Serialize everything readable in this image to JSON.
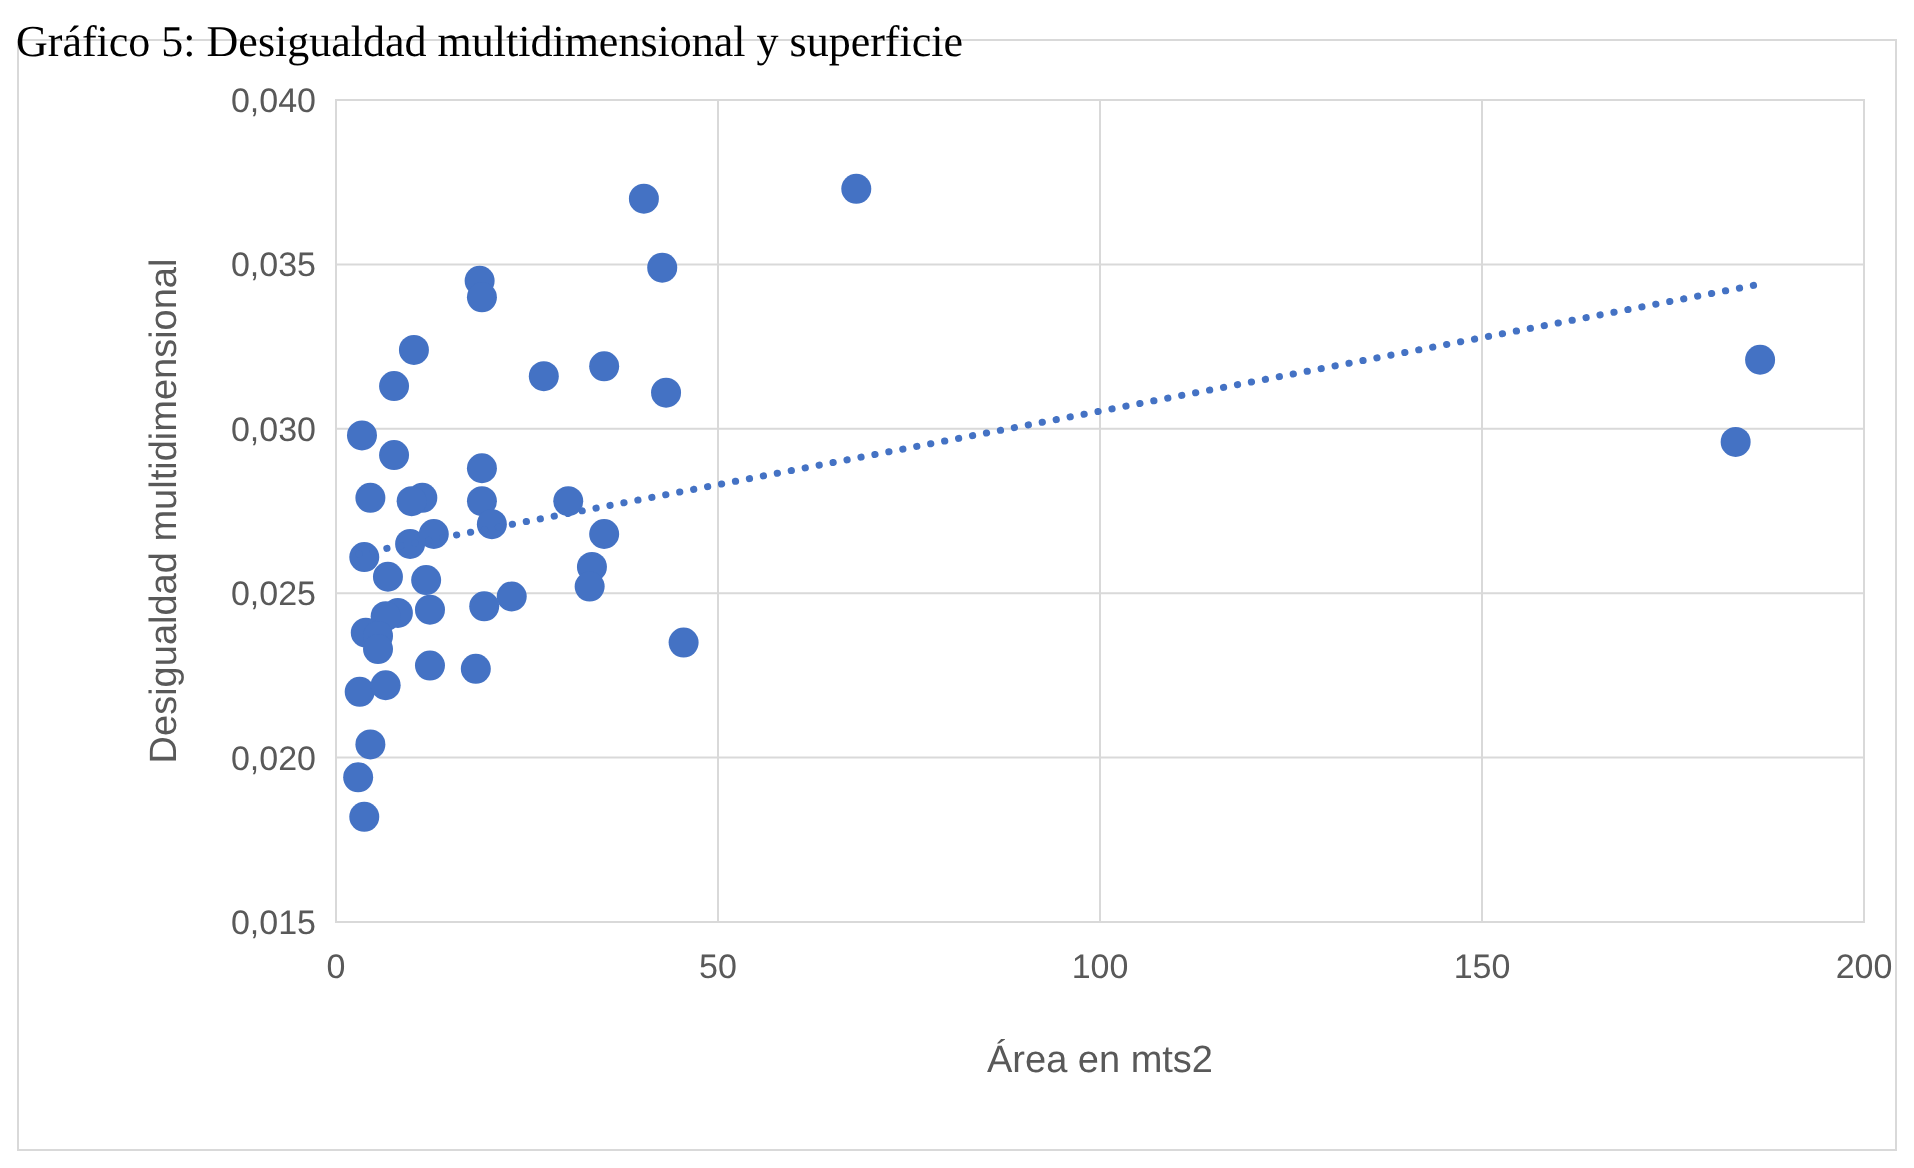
{
  "chart_data": {
    "type": "scatter",
    "title": "Gráfico 5: Desigualdad multidimensional y superficie",
    "xlabel": "Área en mts2",
    "ylabel": "Desigualdad multidimensional",
    "series": [
      {
        "color": "#4472c4",
        "marker": "circle",
        "x": [
          68.1,
          40.3,
          18.8,
          19.1,
          42.7,
          10.2,
          7.6,
          27.2,
          35.1,
          43.2,
          3.4,
          7.6,
          4.5,
          19.1,
          11.3,
          9.9,
          19.1,
          30.4,
          20.4,
          3.7,
          9.7,
          12.8,
          35.1,
          6.8,
          11.8,
          33.5,
          33.2,
          23.0,
          19.4,
          12.3,
          8.1,
          6.5,
          3.9,
          5.5,
          5.5,
          45.5,
          12.3,
          18.3,
          3.1,
          6.5,
          4.5,
          2.9,
          3.7,
          186.4,
          183.2
        ],
        "values": [
          0.0373,
          0.037,
          0.0345,
          0.034,
          0.0349,
          0.0324,
          0.0313,
          0.0316,
          0.0319,
          0.0311,
          0.0298,
          0.0292,
          0.0279,
          0.0288,
          0.0279,
          0.0278,
          0.0278,
          0.0278,
          0.0271,
          0.0261,
          0.0265,
          0.0268,
          0.0268,
          0.0255,
          0.0254,
          0.0258,
          0.0252,
          0.0249,
          0.0246,
          0.0245,
          0.0244,
          0.0243,
          0.0238,
          0.0237,
          0.0233,
          0.0235,
          0.0228,
          0.0227,
          0.022,
          0.0222,
          0.0204,
          0.0194,
          0.0182,
          0.0321,
          0.0296
        ]
      },
      {
        "type": "line",
        "color": "#4472c4",
        "line_style": "dotted",
        "x": [
          3,
          186.4
        ],
        "values": [
          0.0262,
          0.0344
        ]
      }
    ],
    "xlim": [
      0,
      200
    ],
    "xticks": [
      0,
      50,
      100,
      150,
      200
    ],
    "ylim": [
      0.015,
      0.04
    ],
    "yticks": [
      {
        "value": 0.015,
        "label": "0,015"
      },
      {
        "value": 0.02,
        "label": "0,020"
      },
      {
        "value": 0.025,
        "label": "0,025"
      },
      {
        "value": 0.03,
        "label": "0,030"
      },
      {
        "value": 0.035,
        "label": "0,035"
      },
      {
        "value": 0.04,
        "label": "0,040"
      }
    ],
    "grid": true
  }
}
